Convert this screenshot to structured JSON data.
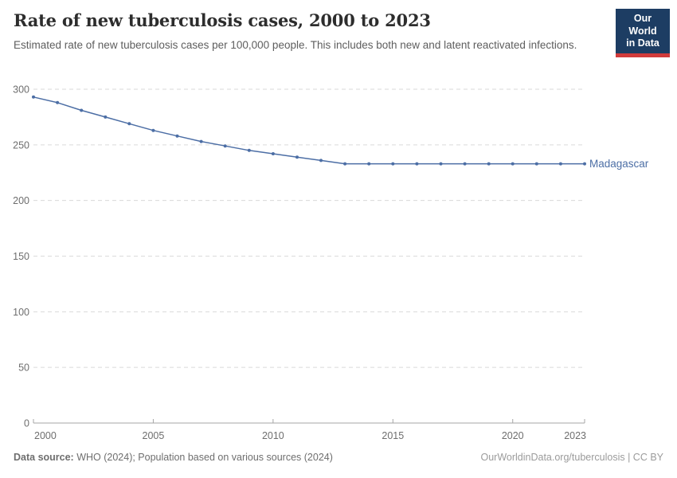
{
  "header": {
    "title": "Rate of new tuberculosis cases, 2000 to 2023",
    "subtitle": "Estimated rate of new tuberculosis cases per 100,000 people. This includes both new and latent reactivated infections.",
    "logo": {
      "line1": "Our World",
      "line2": "in Data",
      "bg_color": "#1d3d63",
      "accent_color": "#d13b3b"
    }
  },
  "chart_data": {
    "type": "line",
    "title": "Rate of new tuberculosis cases, 2000 to 2023",
    "subtitle": "Estimated rate of new tuberculosis cases per 100,000 people. This includes both new and latent reactivated infections.",
    "x": [
      2000,
      2001,
      2002,
      2003,
      2004,
      2005,
      2006,
      2007,
      2008,
      2009,
      2010,
      2011,
      2012,
      2013,
      2014,
      2015,
      2016,
      2017,
      2018,
      2019,
      2020,
      2021,
      2022,
      2023
    ],
    "series": [
      {
        "name": "Madagascar",
        "color": "#4c6ea5",
        "values": [
          293,
          288,
          281,
          275,
          269,
          263,
          258,
          253,
          249,
          245,
          242,
          239,
          236,
          233,
          233,
          233,
          233,
          233,
          233,
          233,
          233,
          233,
          233,
          233
        ]
      }
    ],
    "xlabel": "",
    "ylabel": "",
    "ylim": [
      0,
      300
    ],
    "yticks": [
      0,
      50,
      100,
      150,
      200,
      250,
      300
    ],
    "xticks": [
      2000,
      2005,
      2010,
      2015,
      2020,
      2023
    ],
    "grid": "horizontal-dashed",
    "legend": "line-end-label",
    "marker": "dot"
  },
  "footer": {
    "source_label": "Data source:",
    "source_text": " WHO (2024); Population based on various sources (2024)",
    "link_text": "OurWorldinData.org/tuberculosis | CC BY"
  }
}
